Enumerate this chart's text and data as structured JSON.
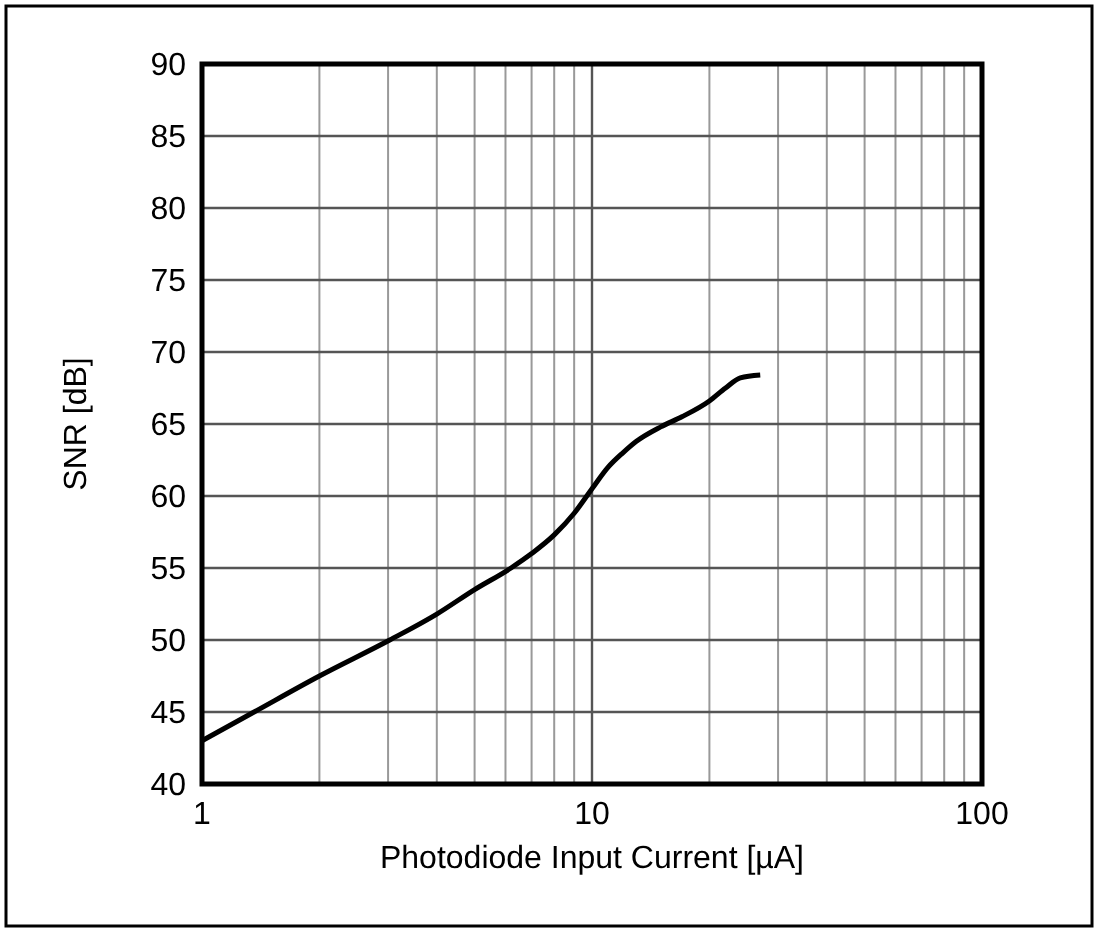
{
  "chart_data": {
    "type": "line",
    "xlabel": "Photodiode Input Current [µA]",
    "ylabel": "SNR [dB]",
    "log": "x",
    "grid": true,
    "line_style": "solid",
    "marker": "none",
    "x": [
      1,
      1.36,
      2,
      3.03,
      4,
      5,
      6.2,
      7,
      8,
      9,
      10,
      11,
      12,
      13,
      15,
      17,
      20,
      22,
      24,
      27
    ],
    "series": [
      {
        "color": "#000000",
        "values": [
          43,
          45,
          47.5,
          50,
          51.8,
          53.5,
          55,
          56,
          57.3,
          58.8,
          60.5,
          62,
          63,
          63.8,
          64.8,
          65.5,
          66.6,
          67.5,
          68.2,
          68.4
        ]
      }
    ],
    "xlim": [
      1,
      100
    ],
    "xticks": [
      1,
      10,
      100
    ],
    "ylim": [
      40,
      90
    ],
    "yticks": [
      40,
      45,
      50,
      55,
      60,
      65,
      70,
      75,
      80,
      85,
      90
    ]
  }
}
